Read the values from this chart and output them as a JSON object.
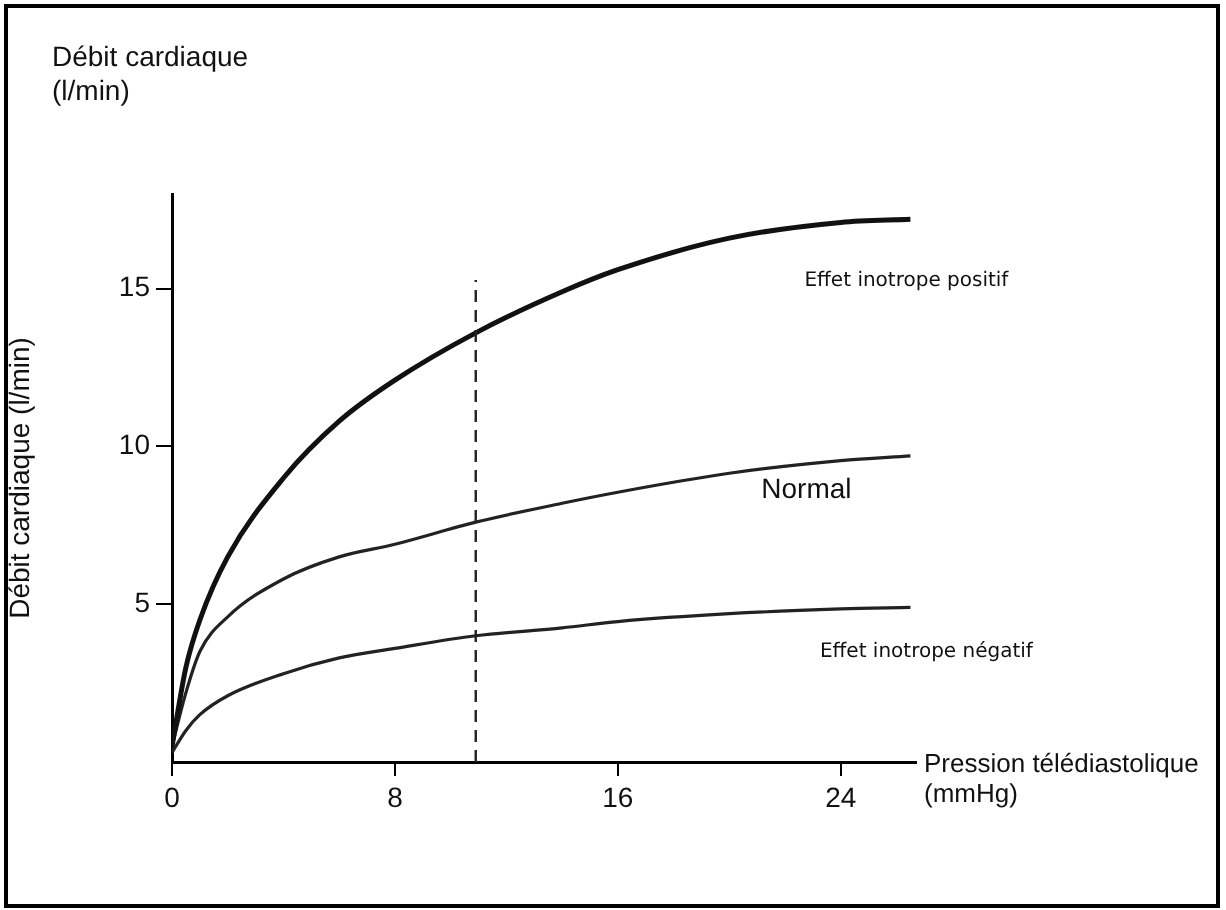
{
  "chart_data": {
    "type": "line",
    "title": "Débit cardiaque (l/min)",
    "xlabel": "Pression télédiastolique (mmHg)",
    "ylabel": "Débit cardiaque (l/min)",
    "x": [
      0,
      0.5,
      1,
      2,
      4,
      6,
      8,
      10.9,
      14,
      16,
      20,
      24,
      26.5
    ],
    "series": [
      {
        "name": "Effet inotrope positif",
        "color": "#111111",
        "values": [
          0.5,
          3,
          4.5,
          6.5,
          9,
          10.8,
          12.1,
          13.6,
          14.9,
          15.6,
          16.6,
          17.1,
          17.2
        ]
      },
      {
        "name": "Normal",
        "color": "#222222",
        "values": [
          0.5,
          2.2,
          3.5,
          4.6,
          5.8,
          6.5,
          6.9,
          7.6,
          8.2,
          8.55,
          9.15,
          9.55,
          9.7
        ]
      },
      {
        "name": "Effet inotrope négatif",
        "color": "#222222",
        "values": [
          0.3,
          1,
          1.5,
          2.1,
          2.8,
          3.3,
          3.6,
          4,
          4.25,
          4.45,
          4.7,
          4.85,
          4.9
        ]
      }
    ],
    "xlim": [
      0,
      26.7
    ],
    "ylim": [
      0,
      18
    ],
    "xticks": [
      0,
      8,
      16,
      24
    ],
    "yticks": [
      5,
      10,
      15
    ],
    "ref_lines": [
      {
        "axis": "x",
        "value": 10.9,
        "line_style": "dashed",
        "color": "#222222"
      }
    ],
    "grid": false,
    "legend": false,
    "marker": "none",
    "line_style": "solid"
  }
}
